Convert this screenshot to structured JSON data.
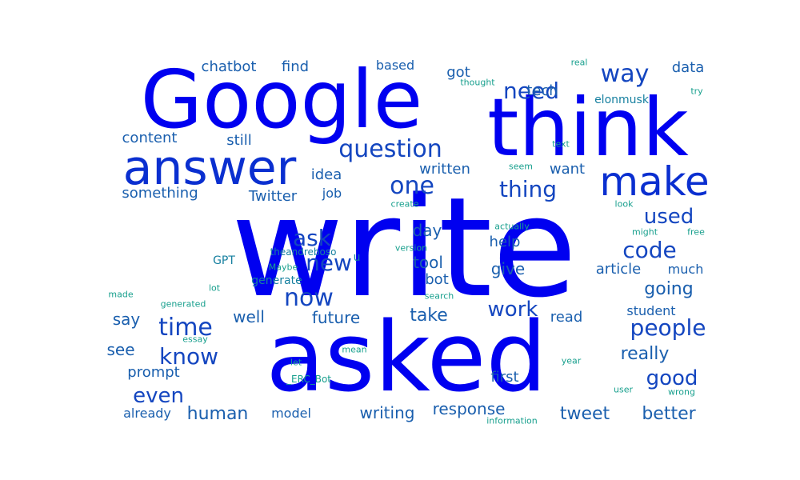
{
  "colors": {
    "xl": "#0000f0",
    "l": "#0a2fd0",
    "m": "#1446c0",
    "s": "#1a5fae",
    "xs": "#1780a0",
    "xxs": "#19a08e"
  },
  "words": [
    {
      "text": "write",
      "tier": "xl"
    },
    {
      "text": "asked",
      "tier": "xl"
    },
    {
      "text": "Google",
      "tier": "xl"
    },
    {
      "text": "think",
      "tier": "xl"
    },
    {
      "text": "answer",
      "tier": "l"
    },
    {
      "text": "make",
      "tier": "l"
    },
    {
      "text": "question",
      "tier": "m"
    },
    {
      "text": "need",
      "tier": "m"
    },
    {
      "text": "way",
      "tier": "m"
    },
    {
      "text": "one",
      "tier": "m"
    },
    {
      "text": "thing",
      "tier": "m"
    },
    {
      "text": "new",
      "tier": "m"
    },
    {
      "text": "ask",
      "tier": "m"
    },
    {
      "text": "now",
      "tier": "m"
    },
    {
      "text": "time",
      "tier": "m"
    },
    {
      "text": "know",
      "tier": "m"
    },
    {
      "text": "people",
      "tier": "m"
    },
    {
      "text": "code",
      "tier": "m"
    },
    {
      "text": "used",
      "tier": "m"
    },
    {
      "text": "good",
      "tier": "m"
    },
    {
      "text": "work",
      "tier": "m"
    },
    {
      "text": "even",
      "tier": "m"
    },
    {
      "text": "going",
      "tier": "s"
    },
    {
      "text": "really",
      "tier": "s"
    },
    {
      "text": "human",
      "tier": "s"
    },
    {
      "text": "tweet",
      "tier": "s"
    },
    {
      "text": "better",
      "tier": "s"
    },
    {
      "text": "writing",
      "tier": "s"
    },
    {
      "text": "response",
      "tier": "s"
    },
    {
      "text": "future",
      "tier": "s"
    },
    {
      "text": "take",
      "tier": "s"
    },
    {
      "text": "got",
      "tier": "s"
    },
    {
      "text": "day",
      "tier": "s"
    },
    {
      "text": "tool",
      "tier": "s"
    },
    {
      "text": "give",
      "tier": "s"
    },
    {
      "text": "help",
      "tier": "s"
    },
    {
      "text": "bot",
      "tier": "s"
    },
    {
      "text": "well",
      "tier": "s"
    },
    {
      "text": "say",
      "tier": "s"
    },
    {
      "text": "see",
      "tier": "s"
    },
    {
      "text": "prompt",
      "tier": "s"
    },
    {
      "text": "chatbot",
      "tier": "s"
    },
    {
      "text": "find",
      "tier": "s"
    },
    {
      "text": "content",
      "tier": "s"
    },
    {
      "text": "still",
      "tier": "s"
    },
    {
      "text": "something",
      "tier": "s"
    },
    {
      "text": "Twitter",
      "tier": "s"
    },
    {
      "text": "idea",
      "tier": "s"
    },
    {
      "text": "written",
      "tier": "s"
    },
    {
      "text": "want",
      "tier": "s"
    },
    {
      "text": "tech",
      "tier": "s"
    },
    {
      "text": "data",
      "tier": "s"
    },
    {
      "text": "article",
      "tier": "s"
    },
    {
      "text": "much",
      "tier": "s"
    },
    {
      "text": "student",
      "tier": "s"
    },
    {
      "text": "read",
      "tier": "s"
    },
    {
      "text": "first",
      "tier": "s"
    },
    {
      "text": "model",
      "tier": "s"
    },
    {
      "text": "already",
      "tier": "s"
    },
    {
      "text": "based",
      "tier": "s"
    },
    {
      "text": "job",
      "tier": "s"
    },
    {
      "text": "elonmusk",
      "tier": "xs"
    },
    {
      "text": "u",
      "tier": "xs"
    },
    {
      "text": "GPT",
      "tier": "xs"
    },
    {
      "text": "generate",
      "tier": "xs"
    },
    {
      "text": "theandreboso",
      "tier": "xs"
    },
    {
      "text": "real",
      "tier": "xxs"
    },
    {
      "text": "thought",
      "tier": "xxs"
    },
    {
      "text": "try",
      "tier": "xxs"
    },
    {
      "text": "text",
      "tier": "xxs"
    },
    {
      "text": "seem",
      "tier": "xxs"
    },
    {
      "text": "create",
      "tier": "xxs"
    },
    {
      "text": "look",
      "tier": "xxs"
    },
    {
      "text": "actually",
      "tier": "xxs"
    },
    {
      "text": "might",
      "tier": "xxs"
    },
    {
      "text": "free",
      "tier": "xxs"
    },
    {
      "text": "version",
      "tier": "xxs"
    },
    {
      "text": "Maybe",
      "tier": "xxs"
    },
    {
      "text": "lot",
      "tier": "xxs"
    },
    {
      "text": "made",
      "tier": "xxs"
    },
    {
      "text": "generated",
      "tier": "xxs"
    },
    {
      "text": "search",
      "tier": "xxs"
    },
    {
      "text": "essay",
      "tier": "xxs"
    },
    {
      "text": "let",
      "tier": "xxs"
    },
    {
      "text": "mean",
      "tier": "xxs"
    },
    {
      "text": "_ERC_Bot",
      "tier": "xxs"
    },
    {
      "text": "year",
      "tier": "xxs"
    },
    {
      "text": "user",
      "tier": "xxs"
    },
    {
      "text": "wrong",
      "tier": "xxs"
    },
    {
      "text": "information",
      "tier": "xxs"
    }
  ]
}
